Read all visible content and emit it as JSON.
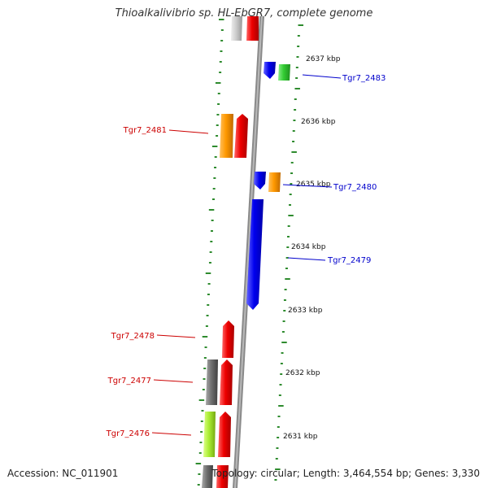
{
  "title": "Thioalkalivibrio sp. HL-EbGR7, complete genome",
  "footer": {
    "accession": "Accession: NC_011901",
    "summary": "Topology: circular; Length: 3,464,554 bp; Genes: 3,330"
  },
  "colors": {
    "background": "#ffffff",
    "backbone": "#8a8a8a",
    "tick": "#2e8b2e",
    "forward_label": "#cc0000",
    "reverse_label": "#0000cc"
  },
  "scale": {
    "unit": "kbp",
    "ticks": [
      "2637 kbp",
      "2636 kbp",
      "2635 kbp",
      "2634 kbp",
      "2633 kbp",
      "2632 kbp",
      "2631 kbp"
    ]
  },
  "genes": [
    {
      "label": "Tgr7_2483",
      "strand": "reverse"
    },
    {
      "label": "Tgr7_2481",
      "strand": "forward"
    },
    {
      "label": "Tgr7_2480",
      "strand": "reverse"
    },
    {
      "label": "Tgr7_2479",
      "strand": "reverse"
    },
    {
      "label": "Tgr7_2478",
      "strand": "forward"
    },
    {
      "label": "Tgr7_2477",
      "strand": "forward"
    },
    {
      "label": "Tgr7_2476",
      "strand": "forward"
    }
  ]
}
